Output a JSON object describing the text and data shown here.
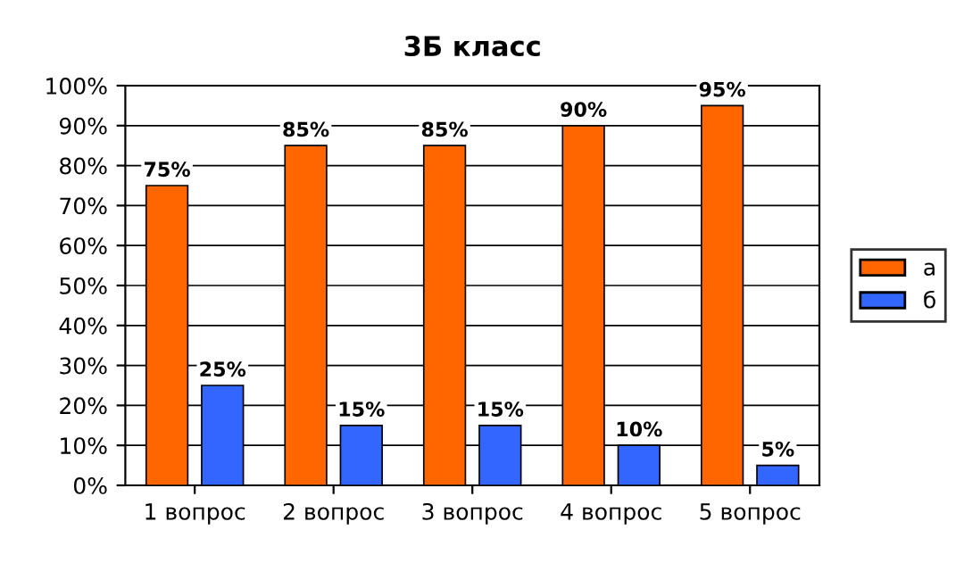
{
  "chart_data": {
    "type": "bar",
    "title": "3Б класс",
    "categories": [
      "1 вопрос",
      "2 вопрос",
      "3 вопрос",
      "4 вопрос",
      "5 вопрос"
    ],
    "series": [
      {
        "name": "а",
        "color": "#ff6600",
        "values": [
          75,
          85,
          85,
          90,
          95
        ],
        "value_labels": [
          "75%",
          "85%",
          "85%",
          "90%",
          "95%"
        ]
      },
      {
        "name": "б",
        "color": "#3366ff",
        "values": [
          25,
          15,
          15,
          10,
          5
        ],
        "value_labels": [
          "25%",
          "15%",
          "15%",
          "10%",
          "5%"
        ]
      }
    ],
    "ylim": [
      0,
      100
    ],
    "yticks": [
      {
        "value": 0,
        "label": "0%"
      },
      {
        "value": 10,
        "label": "10%"
      },
      {
        "value": 20,
        "label": "20%"
      },
      {
        "value": 30,
        "label": "30%"
      },
      {
        "value": 40,
        "label": "40%"
      },
      {
        "value": 50,
        "label": "50%"
      },
      {
        "value": 60,
        "label": "60%"
      },
      {
        "value": 70,
        "label": "70%"
      },
      {
        "value": 80,
        "label": "80%"
      },
      {
        "value": 90,
        "label": "90%"
      },
      {
        "value": 100,
        "label": "100%"
      }
    ],
    "grid": "y",
    "legend": "right"
  }
}
